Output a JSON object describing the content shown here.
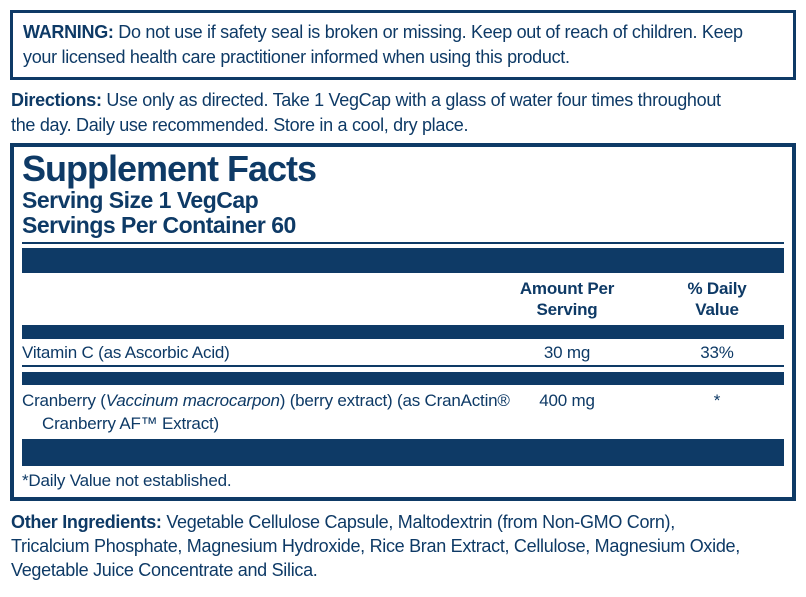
{
  "colors": {
    "navy": "#0e3a66",
    "background": "#ffffff"
  },
  "warning": {
    "label": "WARNING:",
    "text": "Do not use if safety seal is broken or missing. Keep out of reach of children. Keep\nyour licensed health care practitioner informed when using this product."
  },
  "directions": {
    "label": "Directions:",
    "text": "Use only as directed. Take 1 VegCap with a glass of water four times throughout\nthe day. Daily use recommended. Store in a cool, dry place."
  },
  "supplement_facts": {
    "title": "Supplement Facts",
    "serving_size": "Serving Size 1 VegCap",
    "servings_per_container": "Servings Per Container 60",
    "columns": {
      "amount_line1": "Amount Per",
      "amount_line2": "Serving",
      "dv_line1": "% Daily",
      "dv_line2": "Value"
    },
    "rows": {
      "vitamin_c": {
        "name": "Vitamin C (as Ascorbic Acid)",
        "amount": "30 mg",
        "daily_value": "33%"
      },
      "cranberry": {
        "name_prefix": "Cranberry (",
        "name_species_italic": "Vaccinum macrocarpon",
        "name_suffix": ") (berry extract) (as CranActin®",
        "name_line2": "Cranberry AF™ Extract)",
        "amount": "400 mg",
        "daily_value": "*"
      }
    },
    "footnote": "*Daily Value not established."
  },
  "other_ingredients": {
    "label": "Other Ingredients:",
    "text": "Vegetable Cellulose Capsule, Maltodextrin (from Non-GMO Corn),\nTricalcium Phosphate, Magnesium Hydroxide, Rice Bran Extract, Cellulose, Magnesium Oxide,\nVegetable Juice Concentrate and Silica."
  }
}
